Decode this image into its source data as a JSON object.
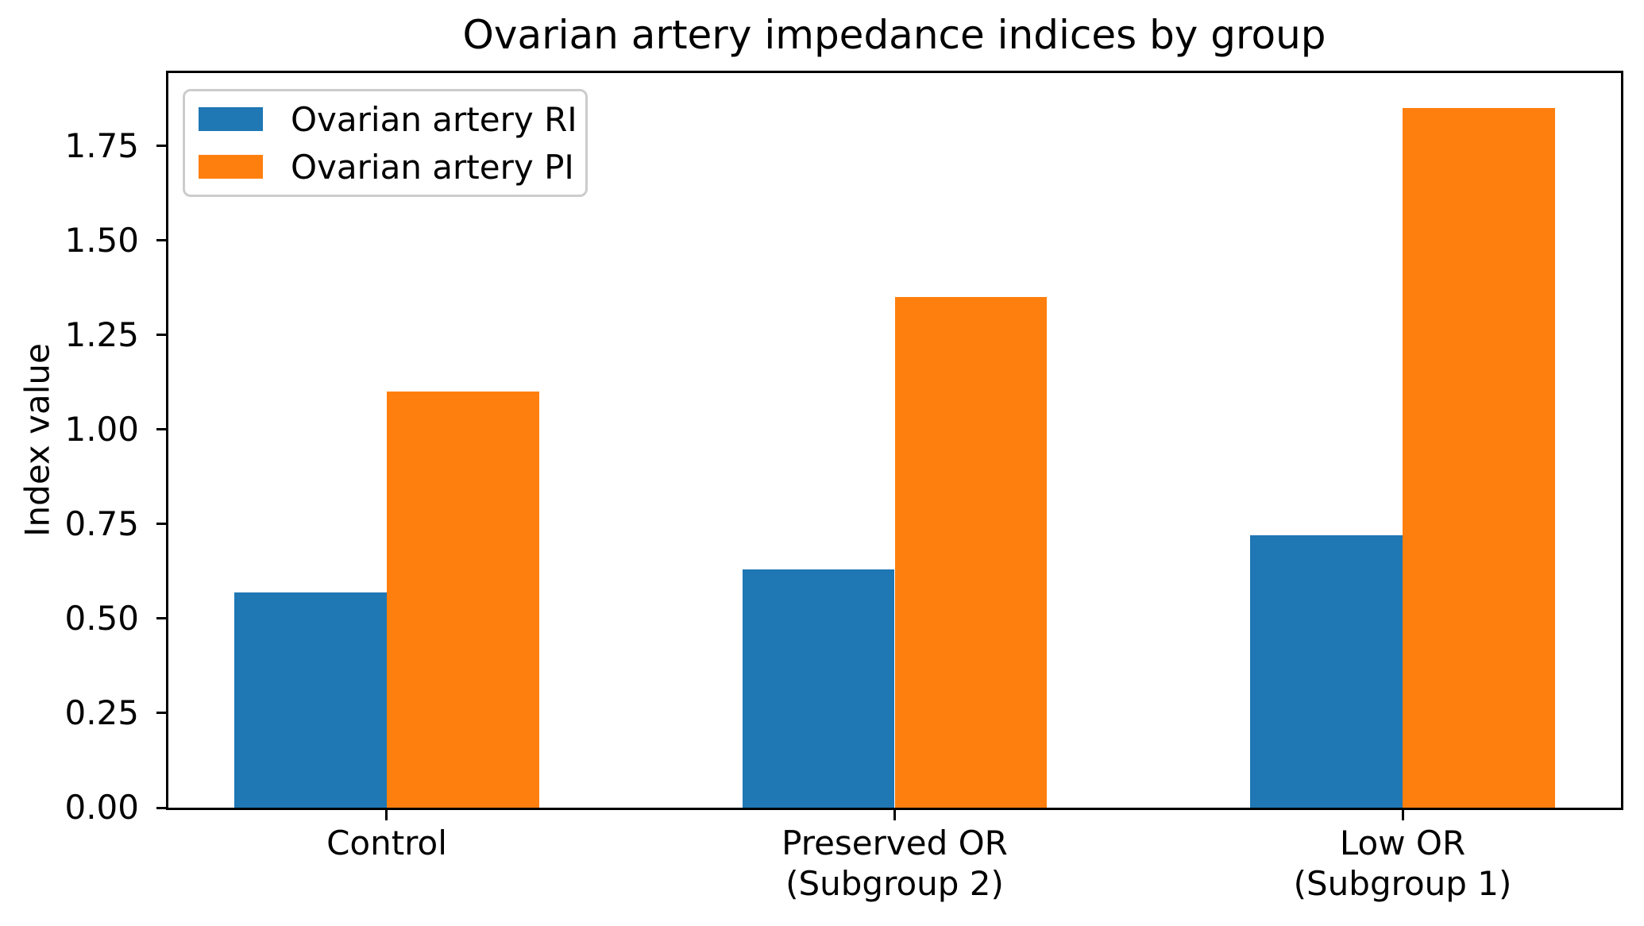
{
  "title": "Ovarian artery impedance indices by group",
  "axes": {
    "ylabel": "Index value",
    "ytick_labels": [
      "0.00",
      "0.25",
      "0.50",
      "0.75",
      "1.00",
      "1.25",
      "1.50",
      "1.75"
    ]
  },
  "chart_data": {
    "type": "bar",
    "title": "Ovarian artery impedance indices by group",
    "xlabel": "",
    "ylabel": "Index value",
    "categories": [
      "Control",
      "Preserved OR\n(Subgroup 2)",
      "Low OR\n(Subgroup 1)"
    ],
    "series": [
      {
        "name": "Ovarian artery RI",
        "color": "#1f77b4",
        "values": [
          0.57,
          0.63,
          0.72
        ]
      },
      {
        "name": "Ovarian artery PI",
        "color": "#ff7f0e",
        "values": [
          1.1,
          1.35,
          1.85
        ]
      }
    ],
    "yticks": [
      0.0,
      0.25,
      0.5,
      0.75,
      1.0,
      1.25,
      1.5,
      1.75
    ],
    "ylim": [
      0,
      1.9425
    ],
    "xlim": [
      -0.43,
      2.43
    ],
    "bar_width": 0.3,
    "bar_offsets": [
      -0.15,
      0.15
    ],
    "grid": false,
    "legend_position": "upper left",
    "background_color": "#ffffff",
    "spine_color": "#000000",
    "legend_border_color": "#cccccc"
  }
}
